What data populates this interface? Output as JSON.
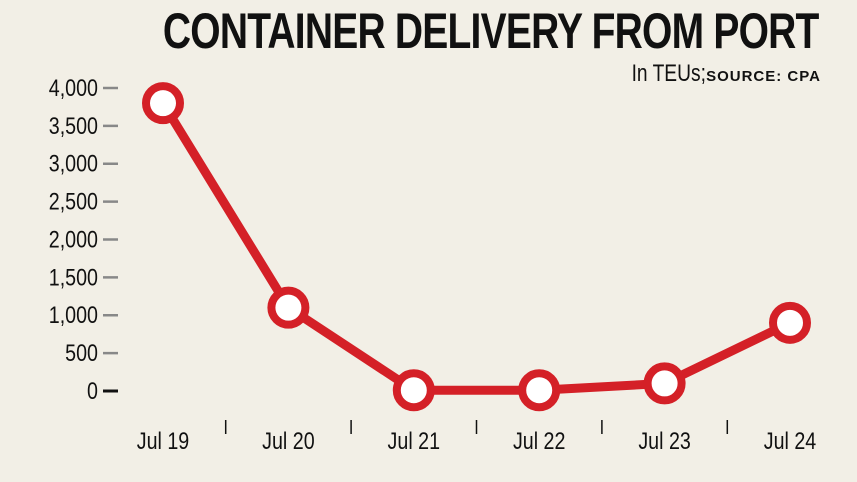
{
  "header": {
    "title": "CONTAINER DELIVERY FROM PORT",
    "unit": "In TEUs;",
    "source": "SOURCE: CPA"
  },
  "colors": {
    "line": "#d42027",
    "marker_fill": "#ffffff",
    "background": "#f2efe6",
    "tick": "#888888"
  },
  "chart_data": {
    "type": "line",
    "title": "CONTAINER DELIVERY FROM PORT",
    "subtitle": "In TEUs; SOURCE: CPA",
    "xlabel": "",
    "ylabel": "TEUs",
    "categories": [
      "Jul 19",
      "Jul 20",
      "Jul 21",
      "Jul 22",
      "Jul 23",
      "Jul 24"
    ],
    "series": [
      {
        "name": "Container delivery",
        "values": [
          3800,
          1100,
          10,
          10,
          100,
          900
        ]
      }
    ],
    "ylim": [
      0,
      4000
    ],
    "yticks": [
      "0",
      "500",
      "1,000",
      "1,500",
      "2,000",
      "2,500",
      "3,000",
      "3,500",
      "4,000"
    ],
    "grid": false,
    "legend": "none"
  }
}
